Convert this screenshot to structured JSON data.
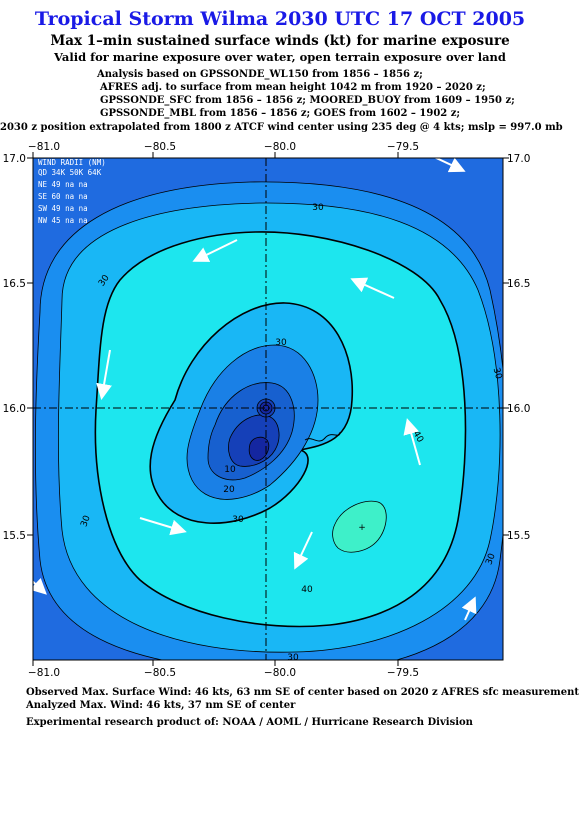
{
  "title": "Tropical Storm Wilma 2030 UTC 17 OCT 2005",
  "subtitle": "Max 1–min sustained surface winds (kt) for marine exposure",
  "subtitle2": "Valid for marine exposure over water, open terrain exposure over land",
  "analysis_lines": [
    "Analysis based on  GPSSONDE_WL150 from 1856 – 1856 z;",
    "AFRES adj. to surface from mean height 1042 m from 1920 – 2020 z;",
    "GPSSONDE_SFC from 1856 – 1856 z;  MOORED_BUOY from 1609 – 1950 z;",
    "GPSSONDE_MBL from 1856 – 1856 z;  GOES from 1602 – 1902 z;"
  ],
  "position_note": "2030 z position extrapolated from 1800 z ATCF wind center using 235 deg @ 4 kts; mslp = 997.0 mb",
  "map": {
    "x_ticks": [
      "−81.0",
      "−80.5",
      "−80.0",
      "−79.5"
    ],
    "y_ticks": [
      "17.0",
      "16.5",
      "16.0",
      "15.5"
    ],
    "contour_labels": [
      "30",
      "30",
      "30",
      "30",
      "30",
      "30",
      "30",
      "40",
      "40",
      "10",
      "20",
      "30"
    ],
    "wind_radii": {
      "title": "WIND RADII (NM)",
      "header": "QD  34K  50K  64K",
      "rows": [
        "NE   49   na   na",
        "SE   60   na   na",
        "SW   49   na   na",
        "NW   45   na   na"
      ]
    },
    "colors": {
      "outer": "#1f6be0",
      "c20": "#1a8ef0",
      "c30": "#19b7f5",
      "c40": "#1de6ee",
      "c50": "#3ef0c9",
      "core_light": "#1a80e6",
      "core_mid": "#1760cf",
      "core_dark": "#1540b8",
      "core_darkest": "#1426a0"
    }
  },
  "footer": [
    "Observed Max. Surface Wind: 46 kts, 63 nm SE of center based on 2020 z AFRES sfc measurement",
    "Analyzed Max. Wind: 46 kts, 37 nm SE of center",
    "Experimental research product of:  NOAA / AOML / Hurricane Research Division"
  ]
}
